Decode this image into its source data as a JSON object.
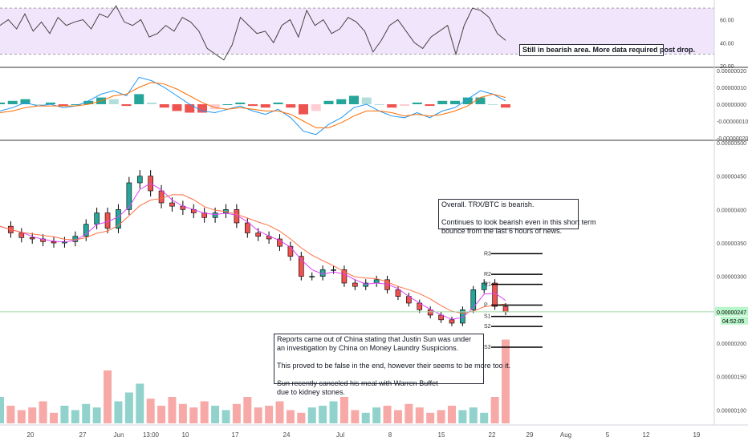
{
  "chart_data": [
    {
      "type": "line",
      "panel": "rsi",
      "y_ticks": [
        "60.00",
        "40.00",
        "20.00"
      ],
      "ylim": [
        20,
        75
      ],
      "band": [
        30,
        70
      ],
      "series": [
        {
          "values": [
            55,
            60,
            52,
            65,
            50,
            58,
            48,
            62,
            55,
            58,
            60,
            52,
            65,
            62,
            72,
            58,
            55,
            60,
            45,
            48,
            55,
            50,
            62,
            58,
            50,
            35,
            30,
            25,
            38,
            62,
            55,
            48,
            50,
            40,
            55,
            60,
            45,
            68,
            55,
            60,
            48,
            52,
            62,
            58,
            50,
            32,
            42,
            55,
            60,
            50,
            40,
            35,
            45,
            50,
            55,
            30,
            55,
            70,
            68,
            62,
            48,
            42
          ]
        }
      ]
    },
    {
      "type": "line",
      "panel": "macd",
      "y_ticks": [
        "0.00000020",
        "0.00000010",
        "0.00000000",
        "-0.00000010",
        "-0.00000020"
      ],
      "ylim": [
        -2e-07,
        2e-07
      ],
      "series": [
        {
          "color": "#2196f3",
          "values": [
            -4e-08,
            -2e-08,
            1e-08,
            -1e-08,
            0.0,
            -2e-08,
            -1e-08,
            2e-08,
            6e-08,
            8e-08,
            5e-08,
            1.6e-07,
            1.4e-07,
            1e-07,
            5e-08,
            0.0,
            -4e-08,
            -5e-08,
            -3e-08,
            -1e-08,
            -4e-08,
            -6e-08,
            -3e-08,
            -8e-08,
            -1.6e-07,
            -1.8e-07,
            -1.2e-07,
            -8e-08,
            -2e-08,
            0.0,
            -4e-08,
            -7e-08,
            -8e-08,
            -5e-08,
            -8e-08,
            -4e-08,
            -2e-08,
            3e-08,
            8e-08,
            6e-08,
            2e-08
          ]
        },
        {
          "color": "#ff6d00",
          "values": [
            -5e-08,
            -4e-08,
            -2e-08,
            -1e-08,
            -1e-08,
            -1e-08,
            -1e-08,
            0.0,
            2e-08,
            5e-08,
            6e-08,
            1e-07,
            1.3e-07,
            1.2e-07,
            9e-08,
            5e-08,
            1e-08,
            -2e-08,
            -3e-08,
            -2e-08,
            -3e-08,
            -4e-08,
            -4e-08,
            -6e-08,
            -1e-07,
            -1.4e-07,
            -1.4e-07,
            -1.1e-07,
            -7e-08,
            -4e-08,
            -4e-08,
            -5e-08,
            -7e-08,
            -6e-08,
            -7e-08,
            -6e-08,
            -4e-08,
            -1e-08,
            4e-08,
            6e-08,
            4e-08
          ]
        }
      ]
    },
    {
      "type": "line",
      "panel": "price",
      "x_ticks": [
        "20",
        "27",
        "Jun",
        "13:00",
        "10",
        "17",
        "24",
        "Jul",
        "8",
        "15",
        "22",
        "29",
        "Aug",
        "5",
        "12",
        "19"
      ],
      "y_ticks": [
        "0.00000500",
        "0.00000450",
        "0.00000400",
        "0.00000350",
        "0.00000300",
        "0.00000250",
        "0.00000200",
        "0.00000150",
        "0.00000100"
      ],
      "ylim": [
        8e-07,
        5e-06
      ],
      "last_price": "0.00000247",
      "countdown": "04:52:05",
      "price_series": [
        3.75e-06,
        3.65e-06,
        3.58e-06,
        3.56e-06,
        3.52e-06,
        3.5e-06,
        3.52e-06,
        3.6e-06,
        3.78e-06,
        3.95e-06,
        3.72e-06,
        4e-06,
        4.4e-06,
        4.5e-06,
        4.28e-06,
        4.1e-06,
        4.05e-06,
        4e-06,
        3.95e-06,
        3.88e-06,
        3.95e-06,
        4e-06,
        3.8e-06,
        3.65e-06,
        3.6e-06,
        3.56e-06,
        3.45e-06,
        3.3e-06,
        3e-06,
        3e-06,
        3.1e-06,
        3.1e-06,
        2.9e-06,
        2.85e-06,
        2.9e-06,
        2.95e-06,
        2.8e-06,
        2.7e-06,
        2.6e-06,
        2.5e-06,
        2.42e-06,
        2.35e-06,
        2.3e-06,
        2.5e-06,
        2.8e-06,
        2.9e-06,
        2.55e-06,
        2.47e-06
      ],
      "pivot_levels": [
        {
          "label": "R3",
          "value": 3.34e-06
        },
        {
          "label": "R2",
          "value": 3.03e-06
        },
        {
          "label": "R1",
          "value": 2.88e-06
        },
        {
          "label": "P",
          "value": 2.57e-06
        },
        {
          "label": "S1",
          "value": 2.4e-06
        },
        {
          "label": "S2",
          "value": 2.25e-06
        },
        {
          "label": "S3",
          "value": 1.94e-06
        }
      ],
      "volume": [
        0.3,
        0.2,
        0.15,
        0.18,
        0.25,
        0.12,
        0.2,
        0.15,
        0.22,
        0.18,
        0.6,
        0.25,
        0.35,
        0.45,
        0.28,
        0.2,
        0.3,
        0.22,
        0.18,
        0.25,
        0.2,
        0.15,
        0.22,
        0.3,
        0.18,
        0.2,
        0.25,
        0.15,
        0.12,
        0.18,
        0.2,
        0.25,
        0.3,
        0.15,
        0.12,
        0.18,
        0.2,
        0.15,
        0.22,
        0.18,
        0.12,
        0.15,
        0.2,
        0.15,
        0.18,
        0.12,
        0.3,
        0.95
      ]
    }
  ],
  "annotations": {
    "rsi_note": "Still in bearish area. More data required post drop.",
    "price_note": "Overall. TRX/BTC is bearish.\n\nContinues to look bearish even in this short term\nbounce from the last 6 hours of news.",
    "news_note": "Reports came out of China stating that Justin Sun was under\nan investigation by China on Money Laundry Suspicions.\n\nThis proved to be false in the end, however their seems to be more too it.\n\nSun recently canceled his meal with Warren Buffet\ndue to kidney stones."
  },
  "colors": {
    "rsi_band": "#f1e5fb",
    "up": "#26a69a",
    "down": "#ef5350",
    "ema_fast": "#e040fb",
    "ema_slow": "#ff7043",
    "last_price_line": "#a5d6a7",
    "price_tag": "#b9f6ca"
  }
}
